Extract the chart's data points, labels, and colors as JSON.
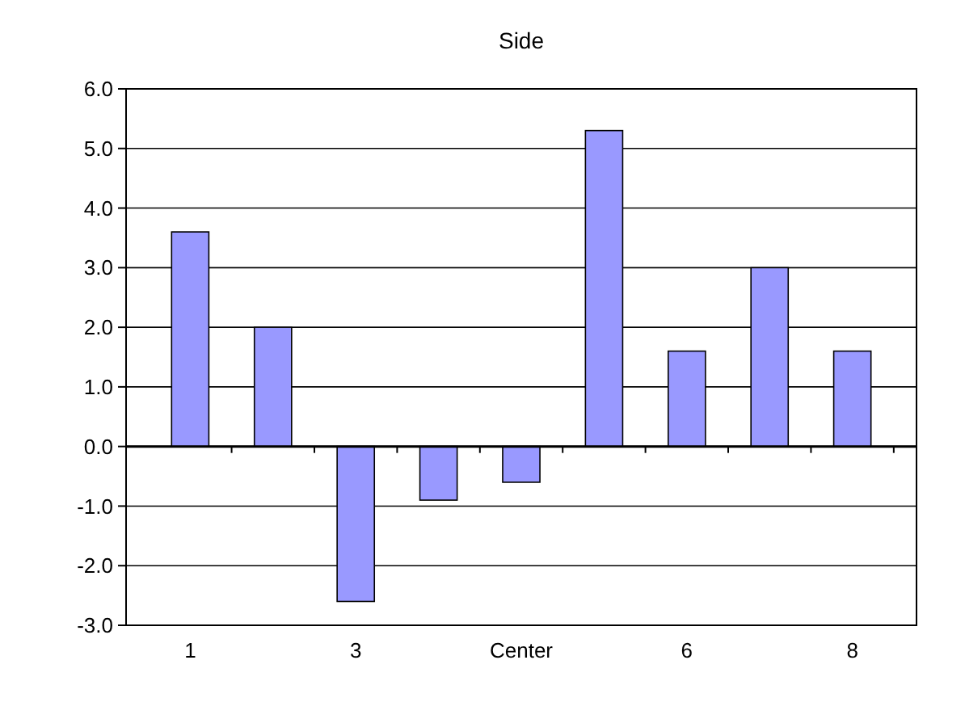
{
  "chart_data": {
    "type": "bar",
    "title": "Side",
    "categories": [
      "1",
      null,
      "3",
      null,
      "Center",
      null,
      "6",
      null,
      "8"
    ],
    "values": [
      3.6,
      2.0,
      -2.6,
      -0.9,
      -0.6,
      5.3,
      1.6,
      3.0,
      1.6
    ],
    "color": "#9999ff",
    "ylim": [
      -3,
      6
    ],
    "yticks": [
      {
        "value": -3,
        "label": "-3.0"
      },
      {
        "value": -2,
        "label": "-2.0"
      },
      {
        "value": -1,
        "label": "-1.0"
      },
      {
        "value": 0,
        "label": "0.0"
      },
      {
        "value": 1,
        "label": "1.0"
      },
      {
        "value": 2,
        "label": "2.0"
      },
      {
        "value": 3,
        "label": "3.0"
      },
      {
        "value": 4,
        "label": "4.0"
      },
      {
        "value": 5,
        "label": "5.0"
      },
      {
        "value": 6,
        "label": "6.0"
      }
    ],
    "grid": "y"
  }
}
